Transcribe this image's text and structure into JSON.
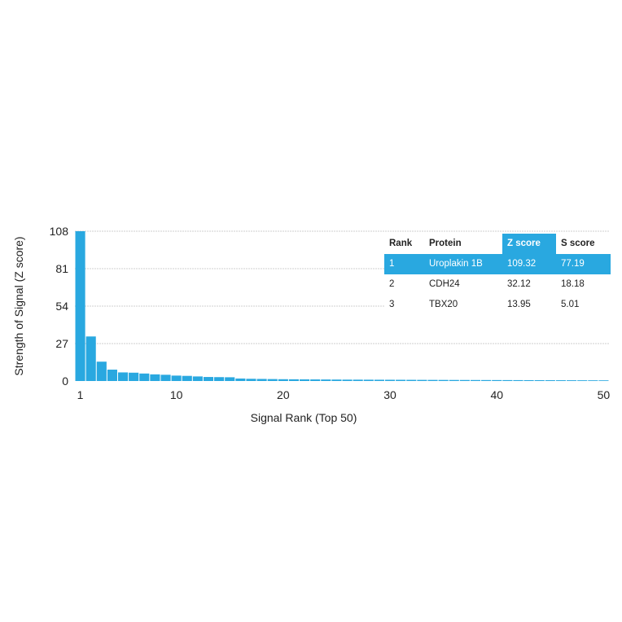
{
  "chart_data": {
    "type": "bar",
    "xlabel": "Signal Rank (Top 50)",
    "ylabel": "Strength of Signal (Z score)",
    "ylim": [
      0,
      108
    ],
    "xlim": [
      1,
      50
    ],
    "yticks": [
      0,
      27,
      54,
      81,
      108
    ],
    "xticks": [
      1,
      10,
      20,
      30,
      40,
      50
    ],
    "grid": true,
    "bar_color": "#29a8e0",
    "x": [
      1,
      2,
      3,
      4,
      5,
      6,
      7,
      8,
      9,
      10,
      11,
      12,
      13,
      14,
      15,
      16,
      17,
      18,
      19,
      20,
      21,
      22,
      23,
      24,
      25,
      26,
      27,
      28,
      29,
      30,
      31,
      32,
      33,
      34,
      35,
      36,
      37,
      38,
      39,
      40,
      41,
      42,
      43,
      44,
      45,
      46,
      47,
      48,
      49,
      50
    ],
    "values": [
      109.32,
      32.12,
      13.95,
      8.2,
      6.2,
      6.0,
      5.4,
      4.8,
      4.5,
      3.9,
      3.7,
      3.3,
      2.9,
      2.8,
      2.7,
      1.8,
      1.6,
      1.5,
      1.4,
      1.3,
      1.25,
      1.2,
      1.15,
      1.1,
      1.05,
      1.0,
      0.98,
      0.95,
      0.92,
      0.9,
      0.88,
      0.85,
      0.82,
      0.8,
      0.78,
      0.76,
      0.74,
      0.72,
      0.7,
      0.68,
      0.66,
      0.64,
      0.62,
      0.6,
      0.58,
      0.56,
      0.54,
      0.52,
      0.5,
      0.48
    ]
  },
  "table": {
    "headers": [
      "Rank",
      "Protein",
      "Z score",
      "S score"
    ],
    "rows": [
      [
        "1",
        "Uroplakin 1B",
        "109.32",
        "77.19"
      ],
      [
        "2",
        "CDH24",
        "32.12",
        "18.18"
      ],
      [
        "3",
        "TBX20",
        "13.95",
        "5.01"
      ]
    ],
    "highlight_color": "#29a8e0"
  }
}
